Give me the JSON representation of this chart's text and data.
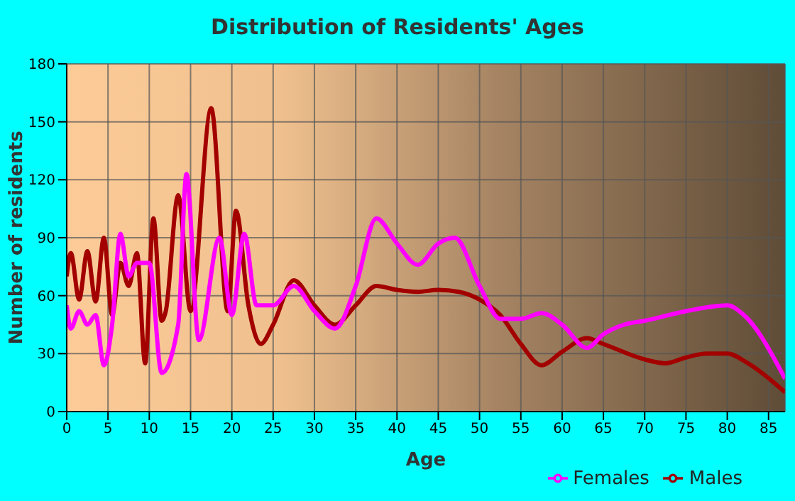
{
  "chart_data": {
    "type": "line",
    "title": "Distribution of Residents' Ages",
    "xlabel": "Age",
    "ylabel": "Number of residents",
    "xlim": [
      0,
      87
    ],
    "xticks": [
      0,
      5,
      10,
      15,
      20,
      25,
      30,
      35,
      40,
      45,
      50,
      55,
      60,
      65,
      70,
      75,
      80,
      85
    ],
    "ylim": [
      0,
      180
    ],
    "yticks": [
      0,
      30,
      60,
      90,
      120,
      150,
      180
    ],
    "grid": true,
    "legend": "bottom right",
    "marker": "none",
    "series": [
      {
        "name": "Males",
        "color": "#a30000",
        "x": [
          0,
          0.5,
          1.5,
          2.5,
          3.5,
          4.5,
          5.5,
          6.5,
          7.5,
          8.5,
          9.5,
          10.5,
          11.5,
          12,
          13.5,
          15,
          17.5,
          19.5,
          20.5,
          22,
          23.5,
          25,
          27.5,
          30,
          32.5,
          35,
          37.5,
          40,
          42.5,
          45,
          47.5,
          50,
          52.5,
          55,
          57.5,
          60,
          63,
          65,
          70,
          72.5,
          75,
          77.5,
          80,
          82.5,
          87
        ],
        "values": [
          70,
          82,
          58,
          83,
          57,
          90,
          50,
          77,
          65,
          82,
          25,
          100,
          47,
          52,
          112,
          52,
          157,
          52,
          104,
          55,
          35,
          45,
          68,
          55,
          45,
          55,
          65,
          63,
          62,
          63,
          62,
          58,
          50,
          35,
          24,
          31,
          38,
          35,
          27,
          25,
          28,
          30,
          30,
          25,
          10
        ]
      },
      {
        "name": "Females",
        "color": "#ff00ff",
        "x": [
          0,
          0.5,
          1.5,
          2.5,
          3.5,
          4.5,
          5.5,
          6.5,
          7.5,
          8.5,
          10,
          11.5,
          13.5,
          14.5,
          16,
          18.5,
          20,
          21.5,
          23,
          25,
          27.5,
          30,
          32.5,
          35,
          37.5,
          40,
          42.5,
          45,
          47,
          50,
          52.5,
          55,
          57.5,
          60,
          63,
          65,
          67.5,
          70,
          75,
          80,
          82,
          87
        ],
        "values": [
          55,
          43,
          52,
          45,
          50,
          24,
          45,
          92,
          70,
          77,
          77,
          20,
          45,
          123,
          37,
          90,
          50,
          92,
          55,
          55,
          65,
          52,
          43,
          65,
          100,
          87,
          76,
          87,
          90,
          65,
          48,
          48,
          51,
          45,
          33,
          40,
          45,
          47,
          52,
          55,
          50,
          17
        ]
      }
    ]
  }
}
